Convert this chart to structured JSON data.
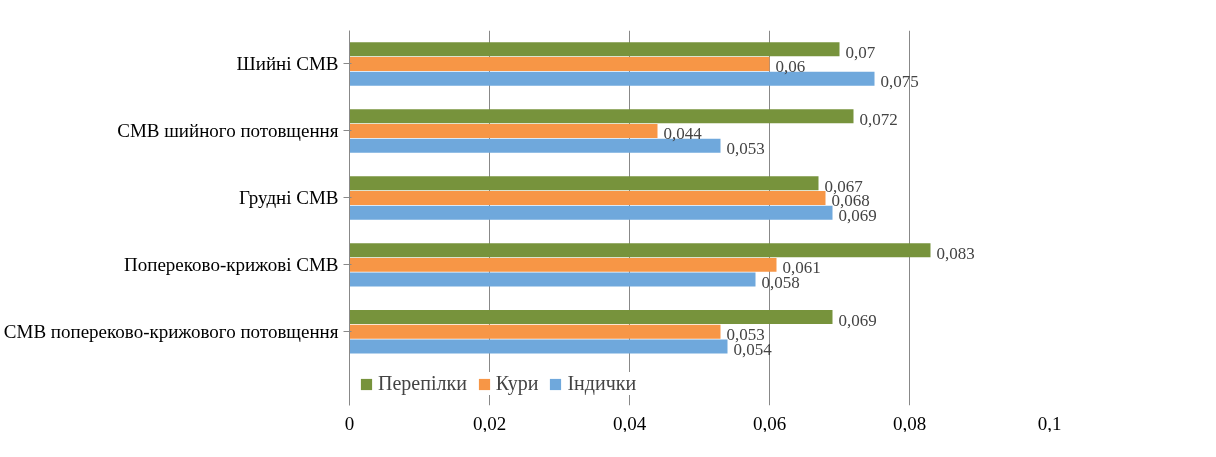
{
  "chart_data": {
    "type": "bar",
    "orientation": "horizontal",
    "categories": [
      "Шийні СМВ",
      "СМВ шийного потовщення",
      "Грудні СМВ",
      "Попереково-крижові СМВ",
      "СМВ попереково-крижового потовщення"
    ],
    "series": [
      {
        "name": "Перепілки",
        "color": "#77933c",
        "values": [
          0.07,
          0.072,
          0.067,
          0.083,
          0.069
        ],
        "value_labels": [
          "0,07",
          "0,072",
          "0,067",
          "0,083",
          "0,069"
        ]
      },
      {
        "name": "Кури",
        "color": "#f79646",
        "values": [
          0.06,
          0.044,
          0.068,
          0.061,
          0.053
        ],
        "value_labels": [
          "0,06",
          "0,044",
          "0,068",
          "0,061",
          "0,053"
        ]
      },
      {
        "name": "Індички",
        "color": "#6fa8dc",
        "values": [
          0.075,
          0.053,
          0.069,
          0.058,
          0.054
        ],
        "value_labels": [
          "0,075",
          "0,053",
          "0,069",
          "0,058",
          "0,054"
        ]
      }
    ],
    "xlim": [
      0,
      0.1
    ],
    "xticks": [
      0,
      {
        "value": 0.02,
        "label": "0,02"
      },
      {
        "value": 0.04,
        "label": "0,04"
      },
      {
        "value": 0.06,
        "label": "0,06"
      },
      {
        "value": 0.08,
        "label": "0,08"
      },
      {
        "value": 0.1,
        "label": "0,1"
      }
    ],
    "grid": "x",
    "legend": "bottom"
  }
}
